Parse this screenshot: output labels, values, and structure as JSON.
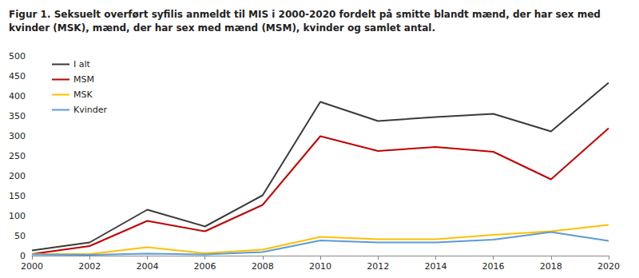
{
  "chart_data": {
    "type": "line",
    "title": "Figur 1. Seksuelt overført syfilis anmeldt til MIS i 2000-2020 fordelt på smitte blandt mænd, der har sex med kvinder (MSK), mænd, der har sex med mænd (MSM), kvinder og samlet antal.",
    "categories": [
      "2000",
      "2002",
      "2004",
      "2006",
      "2008",
      "2010",
      "2012",
      "2014",
      "2016",
      "2018",
      "2020"
    ],
    "series": [
      {
        "name": "I alt",
        "color": "#3a3a3a",
        "values": [
          13,
          33,
          115,
          73,
          151,
          385,
          337,
          347,
          355,
          311,
          433
        ]
      },
      {
        "name": "MSM",
        "color": "#c00000",
        "values": [
          4,
          24,
          87,
          61,
          127,
          299,
          262,
          272,
          260,
          191,
          319
        ]
      },
      {
        "name": "MSK",
        "color": "#ffc000",
        "values": [
          4,
          4,
          21,
          6,
          15,
          47,
          41,
          41,
          52,
          61,
          77
        ]
      },
      {
        "name": "Kvinder",
        "color": "#5b9bd5",
        "values": [
          3,
          2,
          5,
          3,
          9,
          38,
          33,
          33,
          40,
          59,
          37
        ]
      }
    ],
    "ylim": [
      0,
      500
    ],
    "yticks": [
      0,
      50,
      100,
      150,
      200,
      250,
      300,
      350,
      400,
      450,
      500
    ],
    "grid": false,
    "legend": "top-left",
    "marker": "none"
  }
}
